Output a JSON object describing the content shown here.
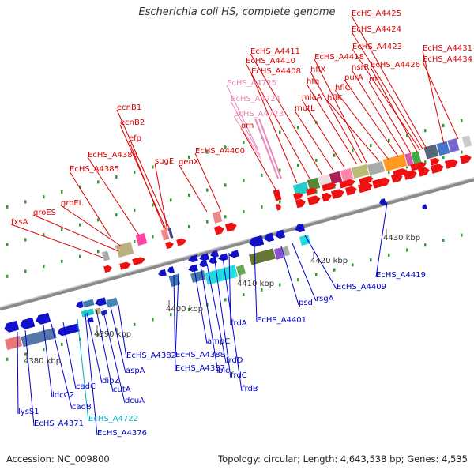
{
  "title": "Escherichia coli HS, complete genome",
  "footer": {
    "accession": "Accession: NC_009800",
    "topology": "Topology: circular; Length: 4,643,538 bp; Genes: 4,535"
  },
  "colors": {
    "forward_label": "#dd0000",
    "reverse_label": "#0000cc",
    "rna_label": "#ee88bb",
    "rna2_label": "#00aacc",
    "tick": "#339933",
    "backbone": "#888888"
  },
  "ruler": [
    {
      "label": "4380 kbp"
    },
    {
      "label": "4390 kbp"
    },
    {
      "label": "4400 kbp"
    },
    {
      "label": "4410 kbp"
    },
    {
      "label": "4420 kbp"
    },
    {
      "label": "4430 kbp"
    }
  ],
  "forward_labels": [
    {
      "text": "fxsA"
    },
    {
      "text": "groES"
    },
    {
      "text": "groEL"
    },
    {
      "text": "EcHS_A4385"
    },
    {
      "text": "EcHS_A4386"
    },
    {
      "text": "efp"
    },
    {
      "text": "ecnB2"
    },
    {
      "text": "ecnB1"
    },
    {
      "text": "sugE"
    },
    {
      "text": "genX"
    },
    {
      "text": "EcHS_A4400"
    },
    {
      "text": "orn"
    },
    {
      "text": "EcHS_A4408"
    },
    {
      "text": "EcHS_A4410"
    },
    {
      "text": "EcHS_A4411"
    },
    {
      "text": "mutL"
    },
    {
      "text": "miaA"
    },
    {
      "text": "hfq"
    },
    {
      "text": "hflX"
    },
    {
      "text": "EcHS_A4418"
    },
    {
      "text": "hflK"
    },
    {
      "text": "hflC"
    },
    {
      "text": "purA"
    },
    {
      "text": "nsrR"
    },
    {
      "text": "rnr"
    },
    {
      "text": "EcHS_A4426"
    },
    {
      "text": "EcHS_A4423"
    },
    {
      "text": "EcHS_A4424"
    },
    {
      "text": "EcHS_A4425"
    },
    {
      "text": "EcHS_A4431"
    },
    {
      "text": "EcHS_A4434"
    }
  ],
  "rna_labels": [
    {
      "text": "EcHS_A4725"
    },
    {
      "text": "EcHS_A4724"
    },
    {
      "text": "EcHS_A4723"
    }
  ],
  "reverse_labels": [
    {
      "text": "lysS1"
    },
    {
      "text": "EcHS_A4371"
    },
    {
      "text": "ldcC2"
    },
    {
      "text": "cadB"
    },
    {
      "text": "cadC"
    },
    {
      "text": "EcHS_A4722"
    },
    {
      "text": "EcHS_A4376"
    },
    {
      "text": "dipZ"
    },
    {
      "text": "cutA"
    },
    {
      "text": "dcuA"
    },
    {
      "text": "aspA"
    },
    {
      "text": "EcHS_A4382"
    },
    {
      "text": "EcHS_A4387"
    },
    {
      "text": "EcHS_A4388"
    },
    {
      "text": "ampC"
    },
    {
      "text": "blc"
    },
    {
      "text": "frdD"
    },
    {
      "text": "frdC"
    },
    {
      "text": "frdB"
    },
    {
      "text": "frdA"
    },
    {
      "text": "EcHS_A4401"
    },
    {
      "text": "psd"
    },
    {
      "text": "rsgA"
    },
    {
      "text": "EcHS_A4409"
    },
    {
      "text": "EcHS_A4419"
    }
  ]
}
